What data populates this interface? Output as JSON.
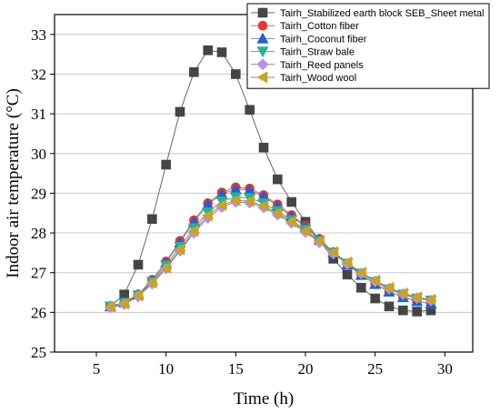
{
  "chart_data": {
    "type": "line",
    "xlabel": "Time (h)",
    "ylabel": "Indoor air temperature (°C)",
    "xlim": [
      2,
      32
    ],
    "ylim": [
      25,
      33.5
    ],
    "xticks": [
      5,
      10,
      15,
      20,
      25,
      30
    ],
    "yticks": [
      25,
      26,
      27,
      28,
      29,
      30,
      31,
      32,
      33
    ],
    "grid": true,
    "legend_position": "top-right",
    "x": [
      6,
      7,
      8,
      9,
      10,
      11,
      12,
      13,
      14,
      15,
      16,
      17,
      18,
      19,
      20,
      21,
      22,
      23,
      24,
      25,
      26,
      27,
      28,
      29
    ],
    "series": [
      {
        "name": "Tairh_Stabilized earth block SEB_Sheet metal",
        "marker": "square",
        "color": "#454545",
        "line_color": "#666666",
        "values": [
          26.15,
          26.45,
          27.2,
          28.35,
          29.72,
          31.05,
          32.05,
          32.6,
          32.55,
          32.0,
          31.1,
          30.15,
          29.35,
          28.78,
          28.28,
          27.82,
          27.35,
          26.95,
          26.62,
          26.35,
          26.15,
          26.05,
          26.02,
          26.05
        ]
      },
      {
        "name": "Tairh_Cotton fiber",
        "marker": "circle",
        "color": "#e8372f",
        "line_color": "#888888",
        "values": [
          26.15,
          26.25,
          26.45,
          26.82,
          27.28,
          27.8,
          28.32,
          28.75,
          29.02,
          29.15,
          29.12,
          28.95,
          28.72,
          28.45,
          28.18,
          27.85,
          27.52,
          27.22,
          26.95,
          26.72,
          26.52,
          26.38,
          26.28,
          26.22
        ]
      },
      {
        "name": "Tairh_Coconut fiber",
        "marker": "triangle-up",
        "color": "#2060d8",
        "line_color": "#888888",
        "values": [
          26.15,
          26.25,
          26.45,
          26.8,
          27.25,
          27.76,
          28.28,
          28.72,
          28.98,
          29.1,
          29.08,
          28.92,
          28.68,
          28.42,
          28.15,
          27.83,
          27.5,
          27.2,
          26.94,
          26.71,
          26.52,
          26.38,
          26.28,
          26.22
        ]
      },
      {
        "name": "Tairh_Straw bale",
        "marker": "triangle-down",
        "color": "#22b58d",
        "line_color": "#888888",
        "values": [
          26.15,
          26.24,
          26.43,
          26.77,
          27.18,
          27.65,
          28.12,
          28.52,
          28.8,
          28.9,
          28.88,
          28.75,
          28.55,
          28.32,
          28.08,
          27.8,
          27.5,
          27.23,
          26.98,
          26.77,
          26.58,
          26.45,
          26.35,
          26.3
        ]
      },
      {
        "name": "Tairh_Reed panels",
        "marker": "diamond",
        "color": "#b98ee8",
        "line_color": "#888888",
        "values": [
          26.12,
          26.2,
          26.4,
          26.72,
          27.1,
          27.55,
          28.0,
          28.38,
          28.65,
          28.78,
          28.76,
          28.64,
          28.46,
          28.25,
          28.02,
          27.76,
          27.48,
          27.22,
          26.98,
          26.78,
          26.6,
          26.46,
          26.36,
          26.3
        ]
      },
      {
        "name": "Tairh_Wood wool",
        "marker": "triangle-left",
        "color": "#c9a420",
        "line_color": "#888888",
        "values": [
          26.14,
          26.22,
          26.42,
          26.74,
          27.12,
          27.58,
          28.05,
          28.44,
          28.7,
          28.82,
          28.8,
          28.68,
          28.5,
          28.28,
          28.05,
          27.8,
          27.52,
          27.26,
          27.0,
          26.8,
          26.62,
          26.48,
          26.38,
          26.32
        ]
      }
    ]
  }
}
